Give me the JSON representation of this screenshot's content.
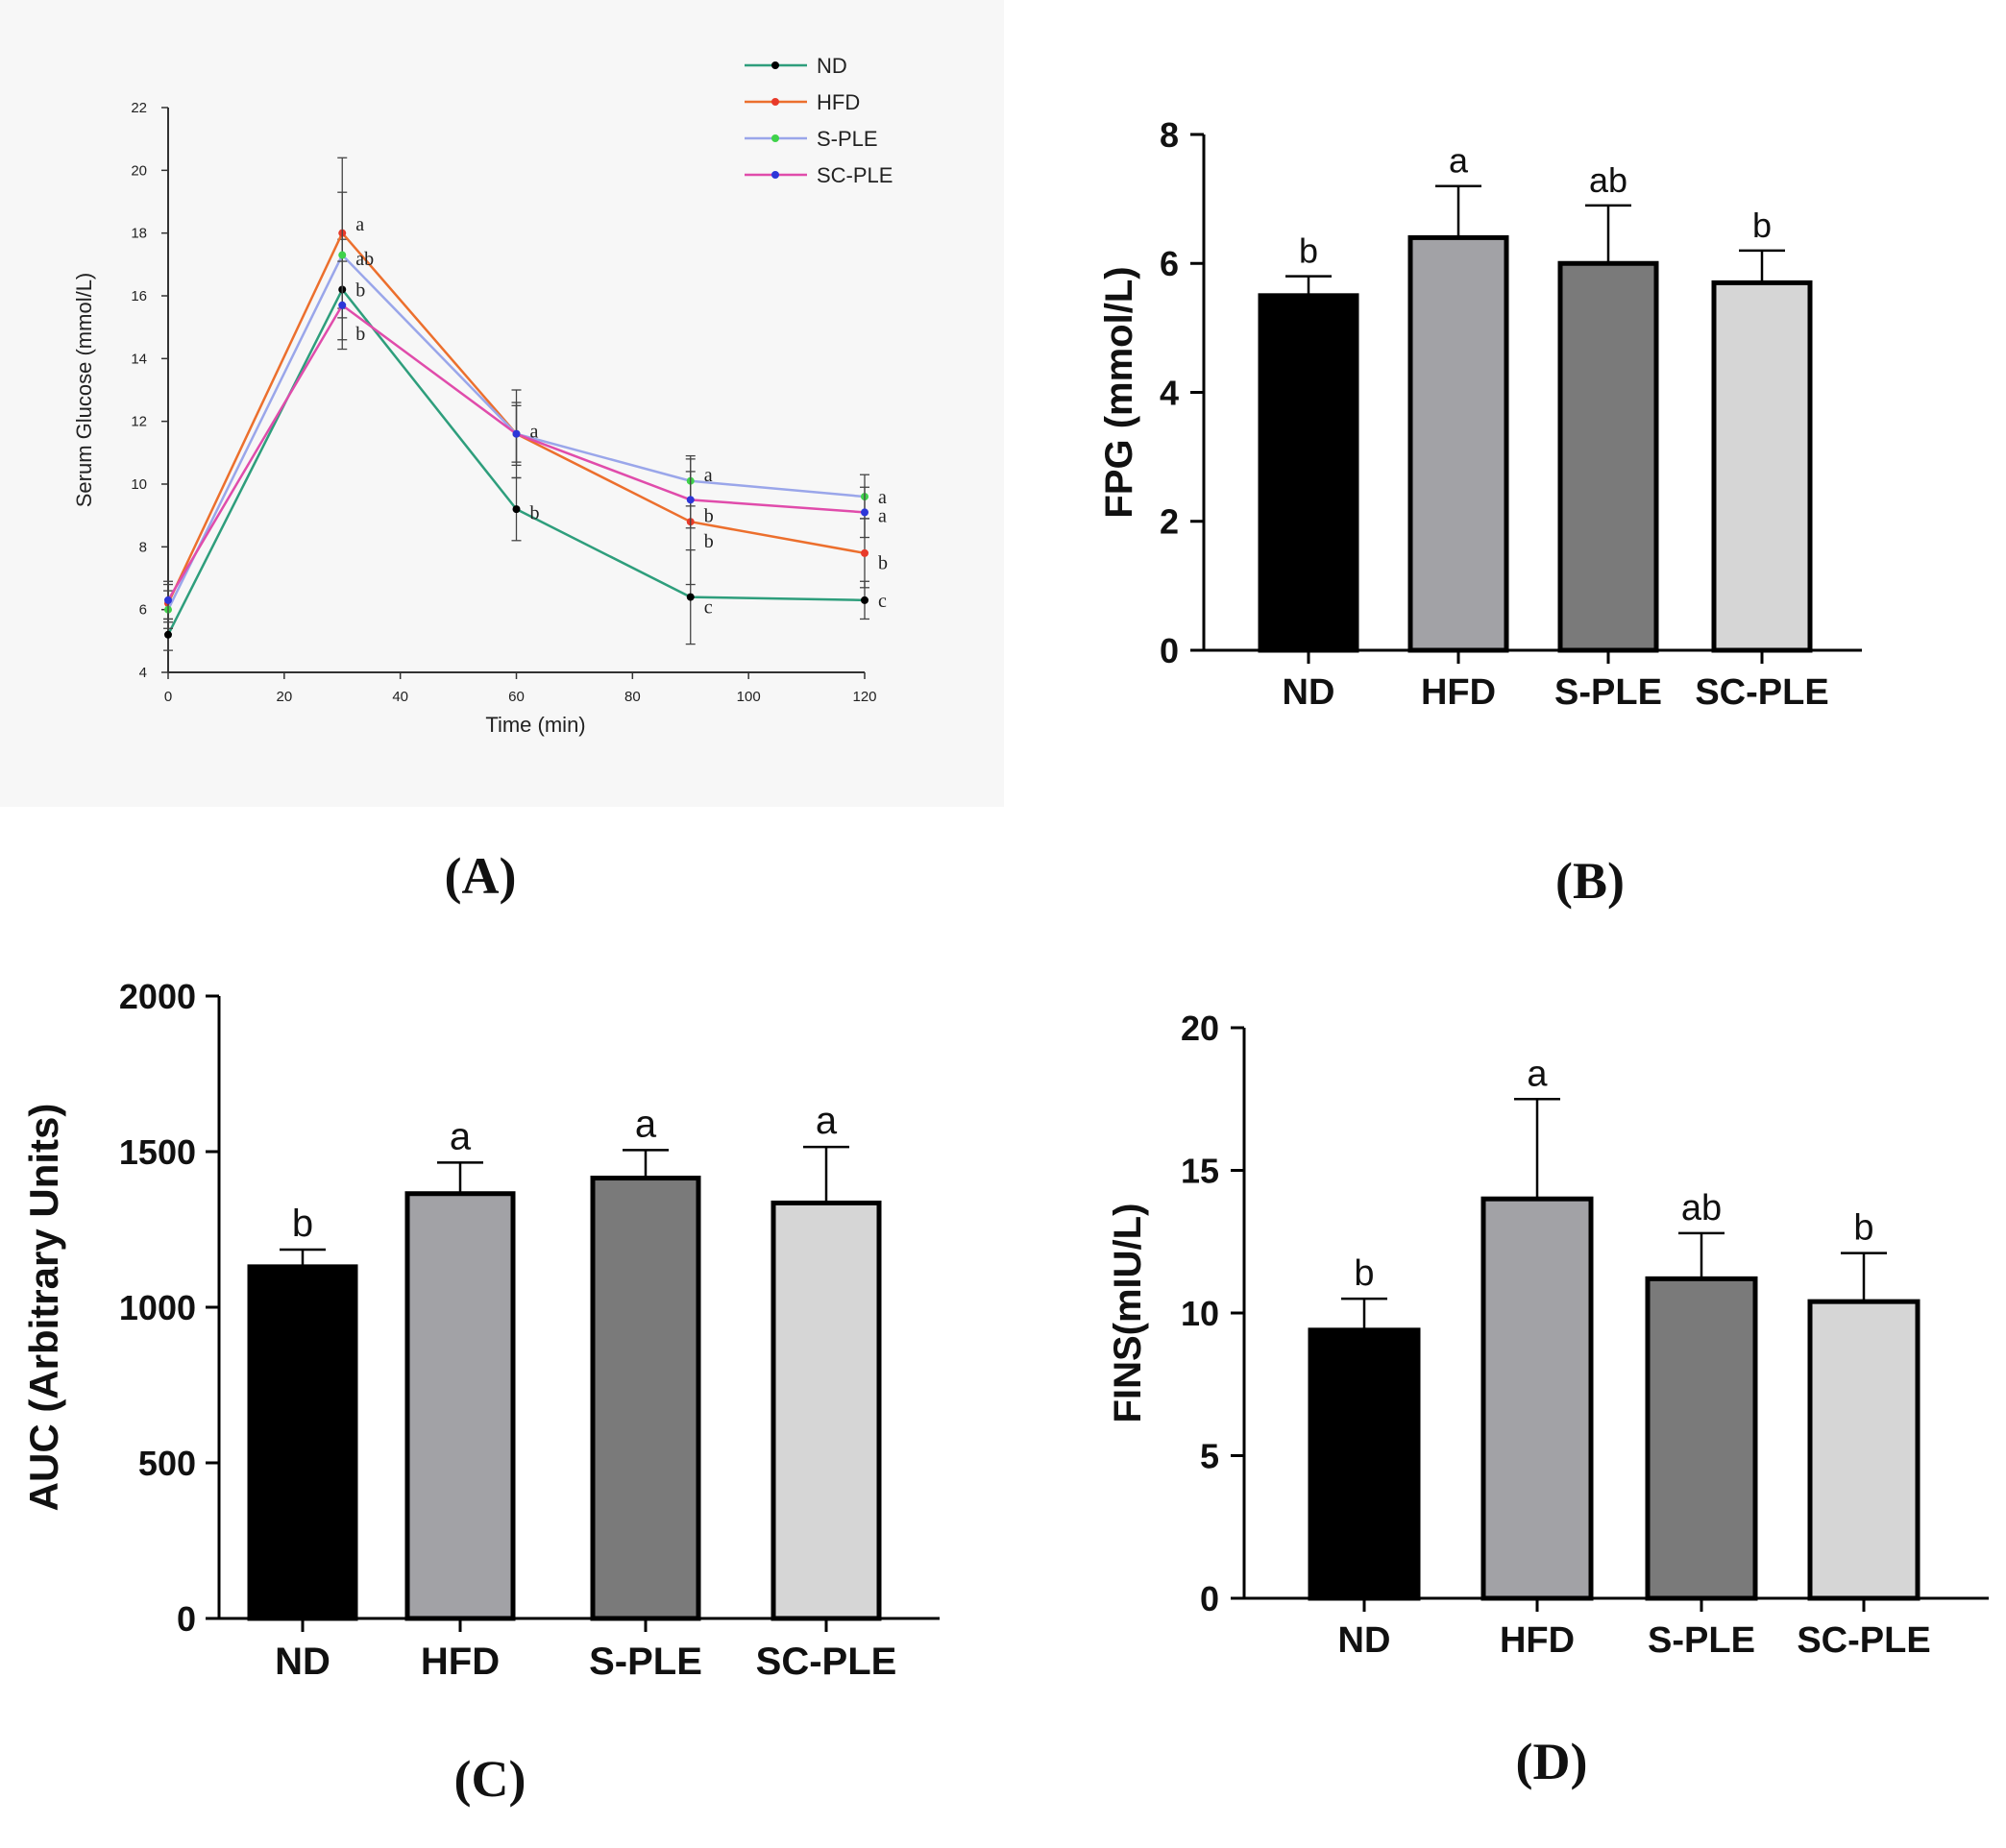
{
  "panels": {
    "A": "(A)",
    "B": "(B)",
    "C": "(C)",
    "D": "(D)"
  },
  "chart_data": [
    {
      "id": "A",
      "type": "line",
      "title": "",
      "xlabel": "Time (min)",
      "ylabel": "Serum Glucose (mmol/L)",
      "xlim": [
        0,
        120
      ],
      "ylim": [
        4,
        22
      ],
      "xticks": [
        0,
        20,
        40,
        60,
        80,
        100,
        120
      ],
      "yticks": [
        4,
        6,
        8,
        10,
        12,
        14,
        16,
        18,
        20,
        22
      ],
      "x": [
        0,
        30,
        60,
        90,
        120
      ],
      "series": [
        {
          "name": "ND",
          "color": "#2e9e7c",
          "marker_color": "#000000",
          "values": [
            5.2,
            16.2,
            9.2,
            6.4,
            6.3
          ],
          "errors": [
            0.5,
            1.6,
            1.0,
            1.5,
            0.6
          ]
        },
        {
          "name": "HFD",
          "color": "#ec6f2d",
          "marker_color": "#e83a2a",
          "values": [
            6.2,
            18.0,
            11.6,
            8.8,
            7.8
          ],
          "errors": [
            0.6,
            2.4,
            1.4,
            2.0,
            1.1
          ]
        },
        {
          "name": "S-PLE",
          "color": "#9aa6ea",
          "marker_color": "#3fd24a",
          "values": [
            6.0,
            17.3,
            11.6,
            10.1,
            9.6
          ],
          "errors": [
            0.6,
            2.0,
            1.0,
            0.8,
            0.7
          ]
        },
        {
          "name": "SC-PLE",
          "color": "#e04cab",
          "marker_color": "#2d36d8",
          "values": [
            6.3,
            15.7,
            11.6,
            9.5,
            9.1
          ],
          "errors": [
            0.6,
            1.4,
            0.9,
            0.9,
            0.8
          ]
        }
      ],
      "annotations": [
        {
          "x": 30,
          "y": 18.3,
          "text": "a"
        },
        {
          "x": 30,
          "y": 17.2,
          "text": "ab"
        },
        {
          "x": 30,
          "y": 16.2,
          "text": "b"
        },
        {
          "x": 30,
          "y": 14.8,
          "text": "b"
        },
        {
          "x": 60,
          "y": 11.7,
          "text": "a"
        },
        {
          "x": 60,
          "y": 9.1,
          "text": "b"
        },
        {
          "x": 90,
          "y": 10.3,
          "text": "a"
        },
        {
          "x": 90,
          "y": 9.0,
          "text": "b"
        },
        {
          "x": 90,
          "y": 8.2,
          "text": "b"
        },
        {
          "x": 90,
          "y": 6.1,
          "text": "c"
        },
        {
          "x": 120,
          "y": 9.6,
          "text": "a"
        },
        {
          "x": 120,
          "y": 9.0,
          "text": "a"
        },
        {
          "x": 120,
          "y": 7.5,
          "text": "b"
        },
        {
          "x": 120,
          "y": 6.3,
          "text": "c"
        }
      ]
    },
    {
      "id": "B",
      "type": "bar",
      "title": "",
      "xlabel": "",
      "ylabel": "FPG (mmol/L)",
      "ylim": [
        0,
        8
      ],
      "yticks": [
        0,
        2,
        4,
        6,
        8
      ],
      "categories": [
        "ND",
        "HFD",
        "S-PLE",
        "SC-PLE"
      ],
      "values": [
        5.5,
        6.4,
        6.0,
        5.7
      ],
      "errors": [
        0.3,
        0.8,
        0.9,
        0.5
      ],
      "letters": [
        "b",
        "a",
        "ab",
        "b"
      ],
      "colors": [
        "#000000",
        "#a2a2a6",
        "#7a7a7a",
        "#d6d6d6"
      ]
    },
    {
      "id": "C",
      "type": "bar",
      "title": "",
      "xlabel": "",
      "ylabel": "AUC (Arbitrary Units)",
      "ylim": [
        0,
        2000
      ],
      "yticks": [
        0,
        500,
        1000,
        1500,
        2000
      ],
      "categories": [
        "ND",
        "HFD",
        "S-PLE",
        "SC-PLE"
      ],
      "values": [
        1130,
        1365,
        1415,
        1335
      ],
      "errors": [
        55,
        100,
        90,
        180
      ],
      "letters": [
        "b",
        "a",
        "a",
        "a"
      ],
      "colors": [
        "#000000",
        "#a2a2a6",
        "#7a7a7a",
        "#d6d6d6"
      ]
    },
    {
      "id": "D",
      "type": "bar",
      "title": "",
      "xlabel": "",
      "ylabel": "FINS(mIU/L)",
      "ylim": [
        0,
        20
      ],
      "yticks": [
        0,
        5,
        10,
        15,
        20
      ],
      "categories": [
        "ND",
        "HFD",
        "S-PLE",
        "SC-PLE"
      ],
      "values": [
        9.4,
        14.0,
        11.2,
        10.4
      ],
      "errors": [
        1.1,
        3.5,
        1.6,
        1.7
      ],
      "letters": [
        "b",
        "a",
        "ab",
        "b"
      ],
      "colors": [
        "#000000",
        "#a2a2a6",
        "#7a7a7a",
        "#d6d6d6"
      ]
    }
  ]
}
